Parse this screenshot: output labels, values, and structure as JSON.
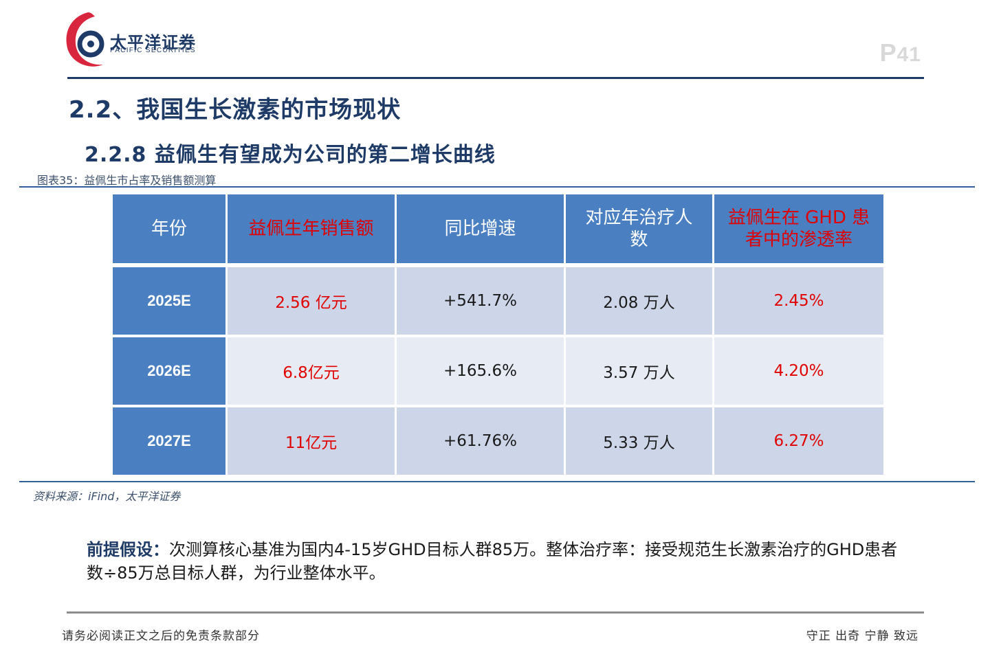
{
  "header": {
    "logo_cn": "太平洋证券",
    "logo_en": "PACIFIC SECURITIES",
    "page_prefix": "P",
    "page_number": "41"
  },
  "section_title": "2.2、我国生长激素的市场现状",
  "subsection_title": "2.2.8 益佩生有望成为公司的第二增长曲线",
  "figure_caption": "图表35：益佩生市占率及销售额测算",
  "table": {
    "headers": [
      "年份",
      "益佩生年销售额",
      "同比增速",
      "对应年治疗人数",
      "益佩生在GHD患者中的渗透率"
    ],
    "header_line1_col3": "对应年治疗人",
    "header_line2_col3": "数",
    "header_line1_col4": "益佩生在 GHD 患",
    "header_line2_col4": "者中的渗透率",
    "rows": [
      {
        "year": "2025E",
        "sales": "2.56 亿元",
        "growth": "+541.7%",
        "patients": "2.08 万人",
        "penetration": "2.45%"
      },
      {
        "year": "2026E",
        "sales": "6.8亿元",
        "growth": "+165.6%",
        "patients": "3.57 万人",
        "penetration": "4.20%"
      },
      {
        "year": "2027E",
        "sales": "11亿元",
        "growth": "+61.76%",
        "patients": "5.33 万人",
        "penetration": "6.27%"
      }
    ]
  },
  "source": "资料来源：iFind，太平洋证券",
  "note": {
    "label": "前提假设：",
    "text": "次测算核心基准为国内4-15岁GHD目标人群85万。整体治疗率：接受规范生长激素治疗的GHD患者数÷85万总目标人群，为行业整体水平。"
  },
  "footer": {
    "left": "请务必阅读正文之后的免责条款部分",
    "right": "守正 出奇 宁静 致远"
  },
  "colors": {
    "brand_navy": "#1e3a66",
    "header_blue": "#4a7fc1",
    "highlight_red": "#e00000",
    "row_dark": "#cdd6e8",
    "row_light": "#e7ebf4",
    "logo_red": "#d7263d"
  }
}
